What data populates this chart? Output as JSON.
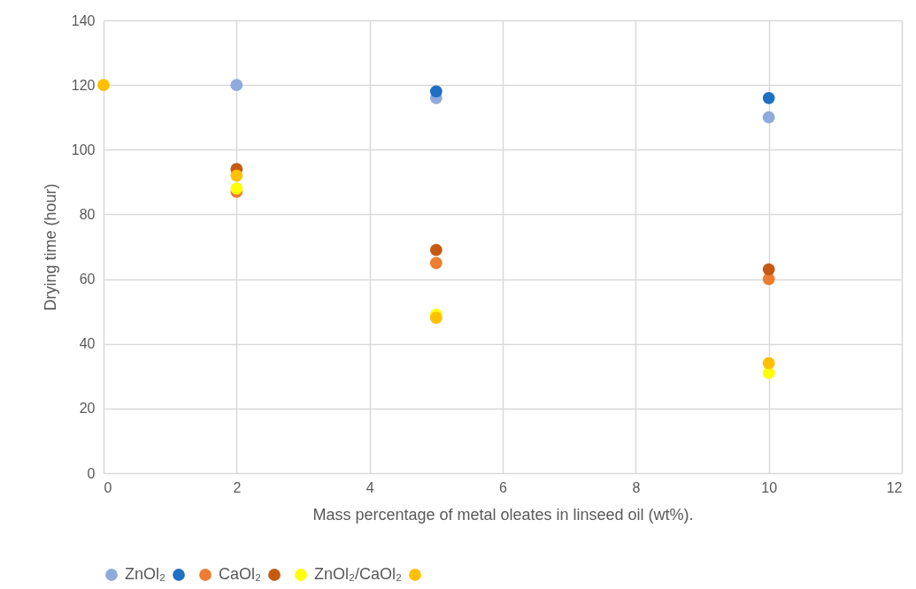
{
  "chart_data": {
    "type": "scatter",
    "xlabel": "Mass percentage of metal oleates in linseed oil (wt%).",
    "ylabel": "Drying time (hour)",
    "x": [
      0,
      2,
      5,
      10
    ],
    "series": [
      {
        "name": "ZnOl₂",
        "color": "#8faadc",
        "values": [
          null,
          120,
          116,
          110
        ]
      },
      {
        "color": "#1f6fc5",
        "values": [
          null,
          null,
          118,
          116
        ]
      },
      {
        "name": "CaOl₂",
        "color": "#ed7d31",
        "values": [
          null,
          87,
          65,
          60
        ]
      },
      {
        "color": "#c55a11",
        "values": [
          null,
          94,
          69,
          63
        ]
      },
      {
        "name": "ZnOl₂/CaOl₂",
        "color": "#ffff00",
        "values": [
          null,
          88,
          49,
          31
        ]
      },
      {
        "color": "#ffc000",
        "values": [
          120,
          92,
          48,
          34
        ]
      }
    ],
    "xlim": [
      0,
      12
    ],
    "xticks": [
      0,
      2,
      4,
      6,
      8,
      10,
      12
    ],
    "ylim": [
      0,
      140
    ],
    "yticks": [
      0,
      20,
      40,
      60,
      80,
      100,
      120,
      140
    ],
    "grid": true,
    "legend": "bottom",
    "marker": "circle"
  }
}
